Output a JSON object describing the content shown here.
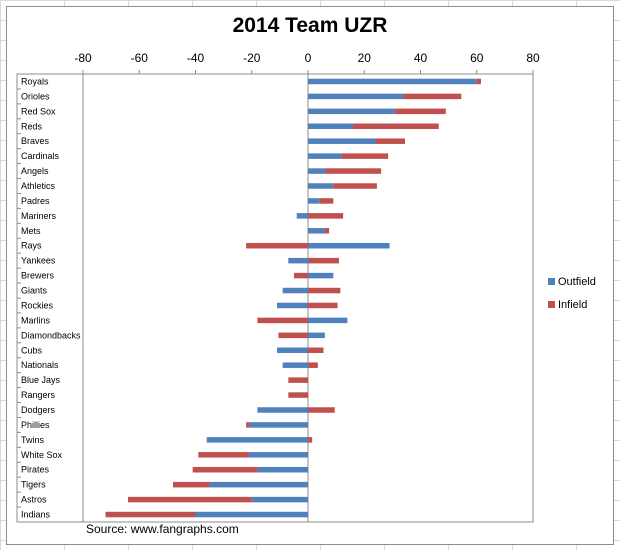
{
  "chart_data": {
    "type": "bar",
    "orientation": "horizontal",
    "stacked": true,
    "title": "2014 Team UZR",
    "source": "Source: www.fangraphs.com",
    "xlim": [
      -80,
      80
    ],
    "xticks": [
      "-80",
      "-60",
      "-40",
      "-20",
      "0",
      "20",
      "40",
      "60",
      "80"
    ],
    "xaxis_position": "top",
    "grid": false,
    "legend_position": "right",
    "categories": [
      "Royals",
      "Orioles",
      "Red Sox",
      "Reds",
      "Braves",
      "Cardinals",
      "Angels",
      "Athletics",
      "Padres",
      "Mariners",
      "Mets",
      "Rays",
      "Yankees",
      "Brewers",
      "Giants",
      "Rockies",
      "Marlins",
      "Diamondbacks",
      "Cubs",
      "Nationals",
      "Blue Jays",
      "Rangers",
      "Dodgers",
      "Phillies",
      "Twins",
      "White Sox",
      "Pirates",
      "Tigers",
      "Astros",
      "Indians"
    ],
    "series": [
      {
        "name": "Outfield",
        "color": "#4f81bd",
        "values": [
          60,
          34,
          31,
          16,
          24,
          12,
          6,
          9,
          4,
          -4,
          6,
          29,
          -7,
          9,
          -9,
          -11,
          14,
          6,
          -11,
          -9,
          0,
          0,
          -18,
          -21,
          -36,
          -21,
          -18,
          -35,
          -20,
          -40
        ]
      },
      {
        "name": "Infield",
        "color": "#c0504d",
        "values": [
          1.5,
          20.5,
          18,
          30.5,
          10.5,
          16.5,
          20,
          15.5,
          5,
          12.5,
          1.5,
          -22,
          11,
          -5,
          11.5,
          10.5,
          -18,
          -10.5,
          5.5,
          3.5,
          -7,
          -7,
          9.5,
          -1,
          1.5,
          -18,
          -23,
          -13,
          -44,
          -32
        ]
      }
    ]
  }
}
